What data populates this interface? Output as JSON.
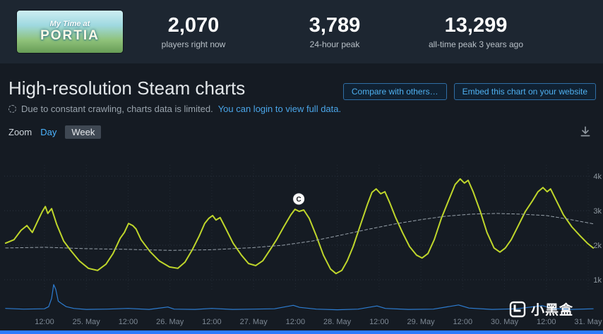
{
  "header": {
    "capsule": {
      "line1": "My Time at",
      "line2": "PORTIA"
    },
    "stats": [
      {
        "value": "2,070",
        "label": "players right now"
      },
      {
        "value": "3,789",
        "label": "24-hour peak"
      },
      {
        "value": "13,299",
        "label": "all-time peak 3 years ago"
      }
    ]
  },
  "charts_section": {
    "title": "High-resolution Steam charts",
    "buttons": {
      "compare": "Compare with others…",
      "embed": "Embed this chart on your website"
    },
    "notice": {
      "text": "Due to constant crawling, charts data is limited.",
      "link": "You can login to view full data."
    },
    "zoom": {
      "label": "Zoom",
      "options": [
        {
          "label": "Day",
          "active": false
        },
        {
          "label": "Week",
          "active": true
        }
      ]
    },
    "export_icon": "download"
  },
  "chart_data": {
    "type": "line",
    "title": "High-resolution Steam charts",
    "x_tick_labels": [
      "12:00",
      "25. May",
      "12:00",
      "26. May",
      "12:00",
      "27. May",
      "12:00",
      "28. May",
      "12:00",
      "29. May",
      "12:00",
      "30. May",
      "12:00",
      "31. May"
    ],
    "y_ticks": [
      {
        "v": 4,
        "label": "4k"
      },
      {
        "v": 3,
        "label": "3k"
      },
      {
        "v": 2,
        "label": "2k"
      },
      {
        "v": 1,
        "label": "1k"
      }
    ],
    "ylim_k": [
      0,
      4.6
    ],
    "y_axis_side": "right",
    "grid": true,
    "marker": {
      "label": "C",
      "x": 6.08,
      "value_k": 3.34
    },
    "series": [
      {
        "name": "players",
        "color": "#bfd62b",
        "width": 2,
        "points": [
          [
            -0.93,
            2.06
          ],
          [
            -0.73,
            2.16
          ],
          [
            -0.56,
            2.43
          ],
          [
            -0.42,
            2.57
          ],
          [
            -0.29,
            2.37
          ],
          [
            -0.15,
            2.73
          ],
          [
            -0.05,
            2.98
          ],
          [
            0.02,
            3.12
          ],
          [
            0.08,
            2.92
          ],
          [
            0.17,
            3.06
          ],
          [
            0.29,
            2.61
          ],
          [
            0.46,
            2.12
          ],
          [
            0.62,
            1.86
          ],
          [
            0.83,
            1.55
          ],
          [
            1.05,
            1.33
          ],
          [
            1.27,
            1.27
          ],
          [
            1.47,
            1.45
          ],
          [
            1.64,
            1.76
          ],
          [
            1.81,
            2.2
          ],
          [
            1.91,
            2.37
          ],
          [
            2.01,
            2.63
          ],
          [
            2.11,
            2.57
          ],
          [
            2.19,
            2.47
          ],
          [
            2.31,
            2.16
          ],
          [
            2.52,
            1.82
          ],
          [
            2.74,
            1.55
          ],
          [
            2.99,
            1.37
          ],
          [
            3.19,
            1.33
          ],
          [
            3.36,
            1.51
          ],
          [
            3.53,
            1.86
          ],
          [
            3.7,
            2.27
          ],
          [
            3.83,
            2.63
          ],
          [
            3.93,
            2.78
          ],
          [
            4.02,
            2.86
          ],
          [
            4.1,
            2.73
          ],
          [
            4.2,
            2.8
          ],
          [
            4.34,
            2.47
          ],
          [
            4.51,
            2.06
          ],
          [
            4.71,
            1.71
          ],
          [
            4.88,
            1.47
          ],
          [
            5.05,
            1.41
          ],
          [
            5.22,
            1.55
          ],
          [
            5.39,
            1.86
          ],
          [
            5.55,
            2.16
          ],
          [
            5.72,
            2.53
          ],
          [
            5.89,
            2.88
          ],
          [
            5.99,
            3.04
          ],
          [
            6.09,
            2.98
          ],
          [
            6.2,
            3.02
          ],
          [
            6.33,
            2.78
          ],
          [
            6.5,
            2.27
          ],
          [
            6.67,
            1.71
          ],
          [
            6.84,
            1.31
          ],
          [
            6.97,
            1.18
          ],
          [
            7.11,
            1.27
          ],
          [
            7.24,
            1.55
          ],
          [
            7.38,
            1.96
          ],
          [
            7.55,
            2.57
          ],
          [
            7.72,
            3.18
          ],
          [
            7.83,
            3.53
          ],
          [
            7.93,
            3.63
          ],
          [
            8.04,
            3.49
          ],
          [
            8.14,
            3.55
          ],
          [
            8.26,
            3.22
          ],
          [
            8.39,
            2.82
          ],
          [
            8.56,
            2.37
          ],
          [
            8.73,
            1.96
          ],
          [
            8.9,
            1.71
          ],
          [
            9.03,
            1.63
          ],
          [
            9.17,
            1.76
          ],
          [
            9.32,
            2.16
          ],
          [
            9.49,
            2.78
          ],
          [
            9.66,
            3.29
          ],
          [
            9.82,
            3.76
          ],
          [
            9.94,
            3.92
          ],
          [
            10.04,
            3.8
          ],
          [
            10.13,
            3.88
          ],
          [
            10.25,
            3.55
          ],
          [
            10.42,
            2.98
          ],
          [
            10.58,
            2.37
          ],
          [
            10.75,
            1.92
          ],
          [
            10.89,
            1.8
          ],
          [
            11.02,
            1.92
          ],
          [
            11.16,
            2.16
          ],
          [
            11.33,
            2.57
          ],
          [
            11.5,
            2.98
          ],
          [
            11.67,
            3.29
          ],
          [
            11.8,
            3.55
          ],
          [
            11.92,
            3.67
          ],
          [
            12.02,
            3.55
          ],
          [
            12.1,
            3.63
          ],
          [
            12.24,
            3.29
          ],
          [
            12.41,
            2.88
          ],
          [
            12.61,
            2.53
          ],
          [
            12.81,
            2.27
          ],
          [
            12.98,
            2.06
          ],
          [
            13.12,
            1.92
          ]
        ]
      },
      {
        "name": "trend-average",
        "color": "#99a3ac",
        "width": 1,
        "dash": true,
        "points": [
          [
            -0.93,
            1.92
          ],
          [
            0,
            1.94
          ],
          [
            1,
            1.9
          ],
          [
            2,
            1.88
          ],
          [
            3,
            1.85
          ],
          [
            4,
            1.87
          ],
          [
            5,
            1.93
          ],
          [
            5.7,
            2.0
          ],
          [
            6.4,
            2.12
          ],
          [
            7,
            2.27
          ],
          [
            7.7,
            2.45
          ],
          [
            8.4,
            2.62
          ],
          [
            9,
            2.74
          ],
          [
            9.6,
            2.84
          ],
          [
            10.2,
            2.9
          ],
          [
            10.8,
            2.92
          ],
          [
            11.4,
            2.9
          ],
          [
            12,
            2.86
          ],
          [
            12.5,
            2.76
          ],
          [
            13.12,
            2.62
          ]
        ]
      },
      {
        "name": "twitch-viewers",
        "color": "#2d7dd2",
        "width": 1.2,
        "points": [
          [
            -0.93,
            0.17
          ],
          [
            -0.5,
            0.15
          ],
          [
            0,
            0.16
          ],
          [
            0.1,
            0.22
          ],
          [
            0.17,
            0.46
          ],
          [
            0.22,
            0.86
          ],
          [
            0.27,
            0.72
          ],
          [
            0.33,
            0.38
          ],
          [
            0.42,
            0.3
          ],
          [
            0.52,
            0.22
          ],
          [
            0.7,
            0.17
          ],
          [
            1.0,
            0.14
          ],
          [
            1.5,
            0.15
          ],
          [
            2.0,
            0.17
          ],
          [
            2.5,
            0.14
          ],
          [
            2.95,
            0.21
          ],
          [
            3.1,
            0.15
          ],
          [
            3.6,
            0.14
          ],
          [
            4.0,
            0.17
          ],
          [
            4.5,
            0.14
          ],
          [
            5.0,
            0.15
          ],
          [
            5.5,
            0.16
          ],
          [
            5.95,
            0.26
          ],
          [
            6.1,
            0.2
          ],
          [
            6.5,
            0.15
          ],
          [
            7.0,
            0.13
          ],
          [
            7.5,
            0.15
          ],
          [
            7.95,
            0.24
          ],
          [
            8.15,
            0.17
          ],
          [
            8.7,
            0.14
          ],
          [
            9.3,
            0.15
          ],
          [
            9.9,
            0.27
          ],
          [
            10.15,
            0.18
          ],
          [
            10.7,
            0.14
          ],
          [
            11.3,
            0.16
          ],
          [
            11.9,
            0.25
          ],
          [
            12.15,
            0.17
          ],
          [
            12.6,
            0.14
          ],
          [
            13.12,
            0.16
          ]
        ]
      }
    ]
  },
  "watermark": {
    "text": "小黑盒"
  }
}
